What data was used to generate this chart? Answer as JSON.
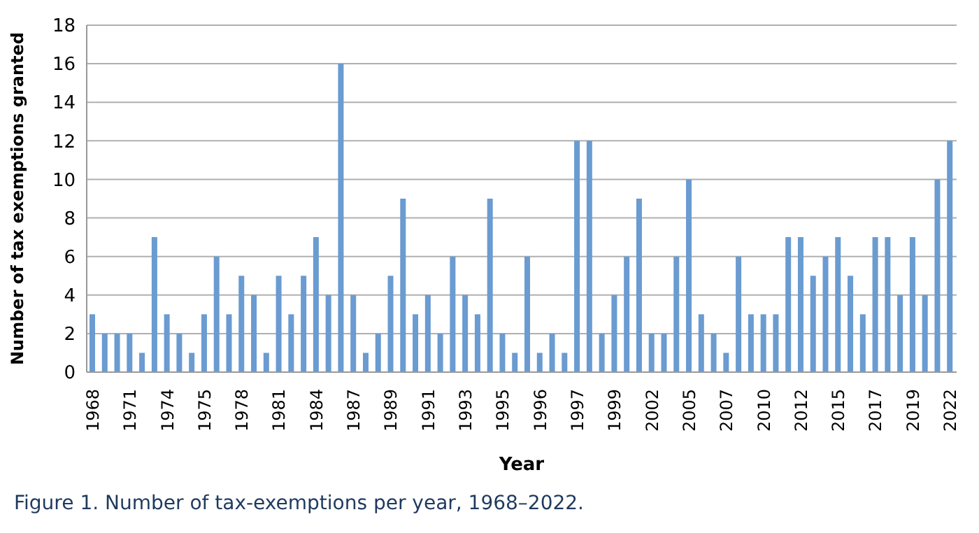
{
  "chart_data": {
    "type": "bar",
    "xlabel": "Year",
    "ylabel": "Number of tax exemptions granted",
    "categories": [
      "1968",
      null,
      null,
      "1971",
      null,
      null,
      "1974",
      null,
      null,
      "1975",
      null,
      null,
      "1978",
      null,
      null,
      "1981",
      null,
      null,
      "1984",
      null,
      null,
      "1987",
      null,
      null,
      "1989",
      null,
      null,
      "1991",
      null,
      null,
      "1993",
      null,
      null,
      "1995",
      null,
      null,
      "1996",
      null,
      null,
      "1997",
      null,
      null,
      "1999",
      null,
      null,
      "2002",
      null,
      null,
      "2005",
      null,
      null,
      "2007",
      null,
      null,
      "2010",
      null,
      null,
      "2012",
      null,
      null,
      "2015",
      null,
      null,
      "2017",
      null,
      null,
      "2019",
      null,
      null,
      "2022"
    ],
    "values": [
      3,
      2,
      2,
      2,
      1,
      7,
      3,
      2,
      1,
      3,
      6,
      3,
      5,
      4,
      1,
      5,
      3,
      5,
      7,
      4,
      16,
      4,
      1,
      2,
      5,
      9,
      3,
      4,
      2,
      6,
      4,
      3,
      9,
      2,
      1,
      6,
      1,
      2,
      1,
      12,
      12,
      2,
      4,
      6,
      9,
      2,
      2,
      6,
      10,
      3,
      2,
      1,
      6,
      3,
      3,
      3,
      7,
      7,
      5,
      6,
      7,
      5,
      3,
      7,
      7,
      4,
      7,
      4,
      10,
      12
    ],
    "color": "#6a9bd1",
    "ylim": [
      0,
      18
    ],
    "yticks": [
      0,
      2,
      4,
      6,
      8,
      10,
      12,
      14,
      16,
      18
    ],
    "grid": "y",
    "annotations": [
      "Figure 1. Number of tax-exemptions per year, 1968–2022."
    ]
  }
}
